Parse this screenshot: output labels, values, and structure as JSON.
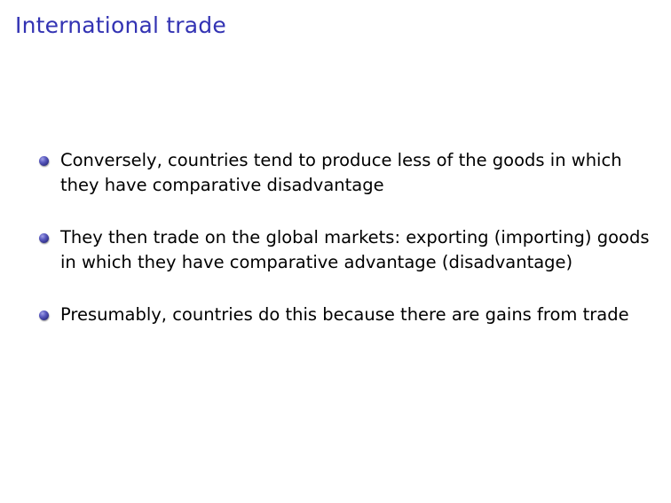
{
  "slide": {
    "title": "International trade",
    "bullets": [
      {
        "text": "Conversely, countries tend to produce less of the goods in which they have comparative disadvantage"
      },
      {
        "text": "They then trade on the global markets: exporting (importing) goods in which they have comparative advantage (disadvantage)"
      },
      {
        "text": "Presumably, countries do this because there are gains from trade"
      }
    ]
  },
  "colors": {
    "title": "#3333b3",
    "bullet": "#4444aa",
    "text": "#000000",
    "background": "#ffffff"
  }
}
